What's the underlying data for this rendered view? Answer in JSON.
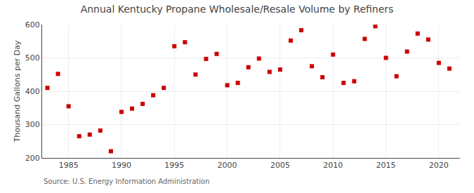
{
  "chart_data": {
    "type": "scatter",
    "title": "Annual Kentucky Propane Wholesale/Resale Volume by Refiners",
    "ylabel": "Thousand Gallons per Day",
    "annotations": [
      "Source: U.S. Energy Information Administration"
    ],
    "x": [
      1983,
      1984,
      1985,
      1986,
      1987,
      1988,
      1989,
      1990,
      1991,
      1992,
      1993,
      1994,
      1995,
      1996,
      1997,
      1998,
      1999,
      2000,
      2001,
      2002,
      2003,
      2004,
      2005,
      2006,
      2007,
      2008,
      2009,
      2010,
      2011,
      2012,
      2013,
      2014,
      2015,
      2016,
      2017,
      2018,
      2019,
      2020,
      2021
    ],
    "values": [
      410,
      452,
      355,
      265,
      270,
      282,
      220,
      338,
      348,
      362,
      388,
      410,
      535,
      547,
      450,
      497,
      512,
      418,
      425,
      472,
      498,
      458,
      465,
      552,
      583,
      475,
      442,
      510,
      425,
      430,
      557,
      595,
      500,
      445,
      519,
      573,
      555,
      485,
      468
    ],
    "marker": "square",
    "color": "#cc0000",
    "xlim": [
      1982.5,
      2022
    ],
    "xticks": [
      1985,
      1990,
      1995,
      2000,
      2005,
      2010,
      2015,
      2020
    ],
    "ylim": [
      200,
      600
    ],
    "yticks": [
      200,
      300,
      400,
      500,
      600
    ],
    "grid": true
  }
}
